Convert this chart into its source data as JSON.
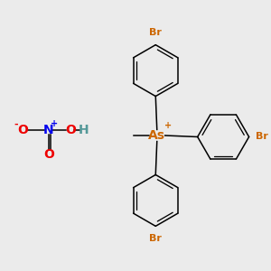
{
  "background_color": "#ebebeb",
  "as_color": "#cc6600",
  "br_color": "#cc6600",
  "bond_color": "#000000",
  "n_color": "#0000ee",
  "o_color": "#ee0000",
  "h_color": "#559999",
  "figsize": [
    3.0,
    3.0
  ],
  "dpi": 100,
  "xlim": [
    0,
    10
  ],
  "ylim": [
    0,
    10
  ]
}
